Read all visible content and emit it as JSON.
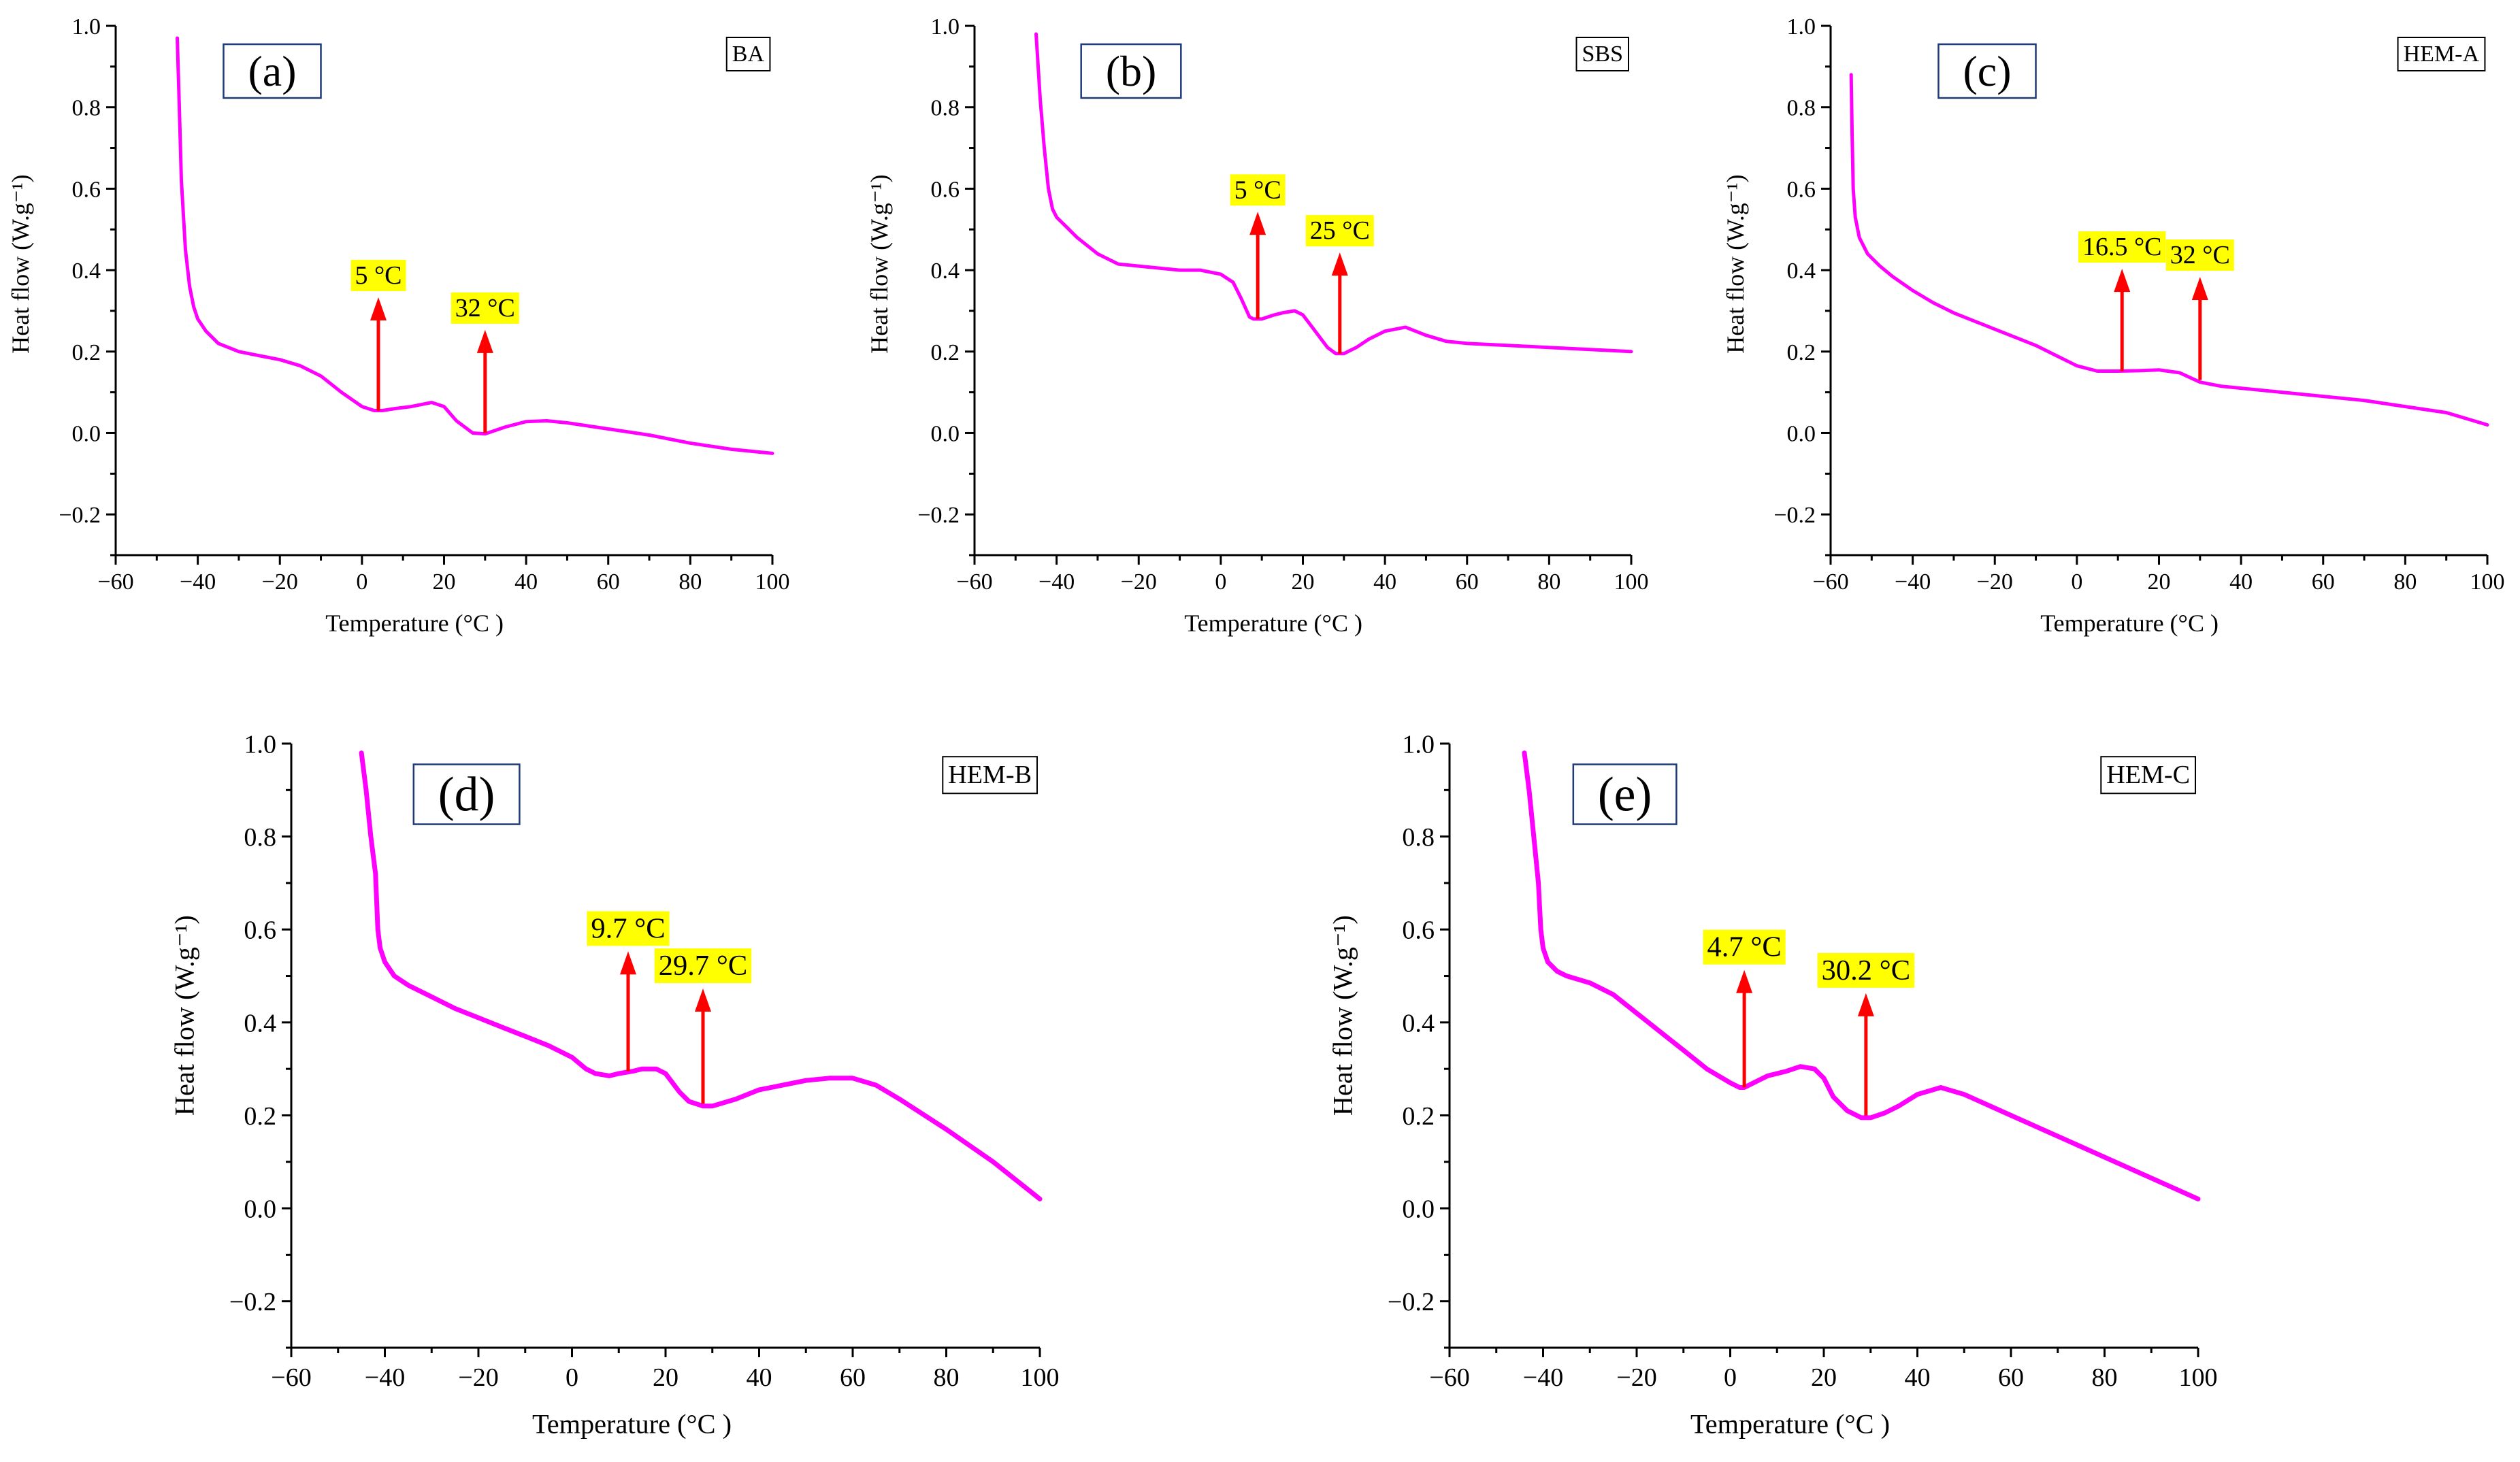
{
  "chart_data": [
    {
      "type": "line",
      "panel_label": "(a)",
      "series": [
        {
          "name": "BA",
          "color": "#ff00ff",
          "x": [
            -45,
            -44.5,
            -44,
            -43,
            -42,
            -41,
            -40,
            -38,
            -35,
            -30,
            -25,
            -20,
            -15,
            -10,
            -5,
            0,
            3,
            5,
            8,
            12,
            17,
            20,
            23,
            27,
            30,
            35,
            40,
            45,
            50,
            60,
            70,
            80,
            90,
            100
          ],
          "y": [
            0.97,
            0.8,
            0.62,
            0.45,
            0.36,
            0.31,
            0.28,
            0.25,
            0.22,
            0.2,
            0.19,
            0.18,
            0.165,
            0.14,
            0.1,
            0.065,
            0.055,
            0.055,
            0.06,
            0.065,
            0.075,
            0.065,
            0.03,
            0.0,
            -0.002,
            0.015,
            0.028,
            0.03,
            0.025,
            0.01,
            -0.005,
            -0.025,
            -0.04,
            -0.05
          ]
        }
      ],
      "annotations": [
        {
          "text": "5 °C",
          "x": 4,
          "y_base": 0.055,
          "y_tip": 0.33
        },
        {
          "text": "32 °C",
          "x": 30,
          "y_base": 0.0,
          "y_tip": 0.25
        }
      ],
      "xlabel": "Temperature (°C )",
      "ylabel": "Heat flow (W.g⁻¹)",
      "xlim": [
        -60,
        100
      ],
      "ylim": [
        -0.3,
        1.0
      ],
      "xticks": [
        -60,
        -40,
        -20,
        0,
        20,
        40,
        60,
        80,
        100
      ],
      "yticks": [
        -0.2,
        0.0,
        0.2,
        0.4,
        0.6,
        0.8,
        1.0
      ],
      "xtick_labels": [
        "−60",
        "−40",
        "−20",
        "0",
        "20",
        "40",
        "60",
        "80",
        "100"
      ],
      "ytick_labels": [
        "−0.2",
        "0.0",
        "0.2",
        "0.4",
        "0.6",
        "0.8",
        "1.0"
      ],
      "legend": "top-right",
      "grid": false
    },
    {
      "type": "line",
      "panel_label": "(b)",
      "series": [
        {
          "name": "SBS",
          "color": "#ff00ff",
          "x": [
            -45,
            -44.5,
            -44,
            -43,
            -42,
            -41,
            -40,
            -38,
            -35,
            -30,
            -25,
            -20,
            -15,
            -10,
            -5,
            0,
            3,
            5,
            7,
            8,
            10,
            13,
            15,
            18,
            20,
            23,
            26,
            28,
            30,
            33,
            36,
            40,
            45,
            50,
            55,
            60,
            70,
            80,
            90,
            100
          ],
          "y": [
            0.98,
            0.9,
            0.82,
            0.7,
            0.6,
            0.55,
            0.53,
            0.51,
            0.48,
            0.44,
            0.415,
            0.41,
            0.405,
            0.4,
            0.4,
            0.39,
            0.37,
            0.33,
            0.285,
            0.28,
            0.28,
            0.29,
            0.295,
            0.3,
            0.29,
            0.25,
            0.21,
            0.195,
            0.195,
            0.21,
            0.23,
            0.25,
            0.26,
            0.24,
            0.225,
            0.22,
            0.215,
            0.21,
            0.205,
            0.2
          ]
        }
      ],
      "annotations": [
        {
          "text": "5 °C",
          "x": 9,
          "y_base": 0.28,
          "y_tip": 0.54
        },
        {
          "text": "25 °C",
          "x": 29,
          "y_base": 0.195,
          "y_tip": 0.44
        }
      ],
      "xlabel": "Temperature (°C )",
      "ylabel": "Heat flow (W.g⁻¹)",
      "xlim": [
        -60,
        100
      ],
      "ylim": [
        -0.3,
        1.0
      ],
      "xticks": [
        -60,
        -40,
        -20,
        0,
        20,
        40,
        60,
        80,
        100
      ],
      "yticks": [
        -0.2,
        0.0,
        0.2,
        0.4,
        0.6,
        0.8,
        1.0
      ],
      "xtick_labels": [
        "−60",
        "−40",
        "−20",
        "0",
        "20",
        "40",
        "60",
        "80",
        "100"
      ],
      "ytick_labels": [
        "−0.2",
        "0.0",
        "0.2",
        "0.4",
        "0.6",
        "0.8",
        "1.0"
      ],
      "legend": "top-right",
      "grid": false
    },
    {
      "type": "line",
      "panel_label": "(c)",
      "series": [
        {
          "name": "HEM-A",
          "color": "#ff00ff",
          "x": [
            -55,
            -54.8,
            -54.5,
            -54,
            -53,
            -51,
            -48,
            -45,
            -40,
            -35,
            -30,
            -25,
            -20,
            -15,
            -10,
            -5,
            0,
            5,
            10,
            15,
            20,
            25,
            30,
            35,
            40,
            50,
            60,
            70,
            80,
            90,
            100
          ],
          "y": [
            0.88,
            0.75,
            0.6,
            0.53,
            0.48,
            0.44,
            0.41,
            0.385,
            0.35,
            0.32,
            0.295,
            0.275,
            0.255,
            0.235,
            0.215,
            0.19,
            0.165,
            0.152,
            0.152,
            0.153,
            0.155,
            0.148,
            0.125,
            0.115,
            0.11,
            0.1,
            0.09,
            0.08,
            0.065,
            0.05,
            0.02
          ]
        }
      ],
      "annotations": [
        {
          "text": "16.5 °C",
          "x": 11,
          "y_base": 0.152,
          "y_tip": 0.4
        },
        {
          "text": "32 °C",
          "x": 30,
          "y_base": 0.13,
          "y_tip": 0.38
        }
      ],
      "xlabel": "Temperature (°C )",
      "ylabel": "Heat flow (W.g⁻¹)",
      "xlim": [
        -60,
        100
      ],
      "ylim": [
        -0.3,
        1.0
      ],
      "xticks": [
        -60,
        -40,
        -20,
        0,
        20,
        40,
        60,
        80,
        100
      ],
      "yticks": [
        -0.2,
        0.0,
        0.2,
        0.4,
        0.6,
        0.8,
        1.0
      ],
      "xtick_labels": [
        "−60",
        "−40",
        "−20",
        "0",
        "20",
        "40",
        "60",
        "80",
        "100"
      ],
      "ytick_labels": [
        "−0.2",
        "0.0",
        "0.2",
        "0.4",
        "0.6",
        "0.8",
        "1.0"
      ],
      "legend": "top-right",
      "grid": false
    },
    {
      "type": "line",
      "panel_label": "(d)",
      "series": [
        {
          "name": "HEM-B",
          "color": "#ff00ff",
          "x": [
            -45,
            -44,
            -43,
            -42,
            -41.5,
            -41,
            -40,
            -38,
            -35,
            -30,
            -25,
            -20,
            -15,
            -10,
            -5,
            0,
            3,
            5,
            8,
            10,
            13,
            15,
            18,
            20,
            23,
            25,
            28,
            30,
            35,
            40,
            45,
            50,
            55,
            60,
            65,
            70,
            80,
            90,
            100
          ],
          "y": [
            0.98,
            0.9,
            0.8,
            0.72,
            0.6,
            0.56,
            0.53,
            0.5,
            0.48,
            0.455,
            0.43,
            0.41,
            0.39,
            0.37,
            0.35,
            0.325,
            0.3,
            0.29,
            0.285,
            0.29,
            0.295,
            0.3,
            0.3,
            0.29,
            0.25,
            0.23,
            0.22,
            0.22,
            0.235,
            0.255,
            0.265,
            0.275,
            0.28,
            0.28,
            0.265,
            0.235,
            0.17,
            0.1,
            0.02
          ]
        }
      ],
      "annotations": [
        {
          "text": "9.7 °C",
          "x": 12,
          "y_base": 0.295,
          "y_tip": 0.55
        },
        {
          "text": "29.7 °C",
          "x": 28,
          "y_base": 0.225,
          "y_tip": 0.47
        }
      ],
      "xlabel": "Temperature (°C )",
      "ylabel": "Heat flow (W.g⁻¹)",
      "xlim": [
        -60,
        100
      ],
      "ylim": [
        -0.3,
        1.0
      ],
      "xticks": [
        -60,
        -40,
        -20,
        0,
        20,
        40,
        60,
        80,
        100
      ],
      "yticks": [
        -0.2,
        0.0,
        0.2,
        0.4,
        0.6,
        0.8,
        1.0
      ],
      "xtick_labels": [
        "−60",
        "−40",
        "−20",
        "0",
        "20",
        "40",
        "60",
        "80",
        "100"
      ],
      "ytick_labels": [
        "−0.2",
        "0.0",
        "0.2",
        "0.4",
        "0.6",
        "0.8",
        "1.0"
      ],
      "legend": "top-right",
      "grid": false
    },
    {
      "type": "line",
      "panel_label": "(e)",
      "series": [
        {
          "name": "HEM-C",
          "color": "#ff00ff",
          "x": [
            -44,
            -43,
            -42,
            -41,
            -40.5,
            -40,
            -39,
            -37,
            -35,
            -30,
            -25,
            -20,
            -15,
            -10,
            -5,
            0,
            2,
            3,
            5,
            8,
            12,
            15,
            18,
            20,
            22,
            25,
            28,
            30,
            33,
            36,
            40,
            45,
            50,
            60,
            70,
            80,
            90,
            100
          ],
          "y": [
            0.98,
            0.9,
            0.8,
            0.7,
            0.6,
            0.56,
            0.53,
            0.51,
            0.5,
            0.485,
            0.46,
            0.42,
            0.38,
            0.34,
            0.3,
            0.27,
            0.26,
            0.26,
            0.27,
            0.285,
            0.295,
            0.305,
            0.3,
            0.28,
            0.24,
            0.21,
            0.195,
            0.195,
            0.205,
            0.22,
            0.245,
            0.26,
            0.245,
            0.2,
            0.155,
            0.11,
            0.065,
            0.02
          ]
        }
      ],
      "annotations": [
        {
          "text": "4.7 °C",
          "x": 3,
          "y_base": 0.26,
          "y_tip": 0.51
        },
        {
          "text": "30.2 °C",
          "x": 29,
          "y_base": 0.2,
          "y_tip": 0.46
        }
      ],
      "xlabel": "Temperature (°C )",
      "ylabel": "Heat flow (W.g⁻¹)",
      "xlim": [
        -60,
        100
      ],
      "ylim": [
        -0.3,
        1.0
      ],
      "xticks": [
        -60,
        -40,
        -20,
        0,
        20,
        40,
        60,
        80,
        100
      ],
      "yticks": [
        -0.2,
        0.0,
        0.2,
        0.4,
        0.6,
        0.8,
        1.0
      ],
      "xtick_labels": [
        "−60",
        "−40",
        "−20",
        "0",
        "20",
        "40",
        "60",
        "80",
        "100"
      ],
      "ytick_labels": [
        "−0.2",
        "0.0",
        "0.2",
        "0.4",
        "0.6",
        "0.8",
        "1.0"
      ],
      "legend": "top-right",
      "grid": false
    }
  ]
}
